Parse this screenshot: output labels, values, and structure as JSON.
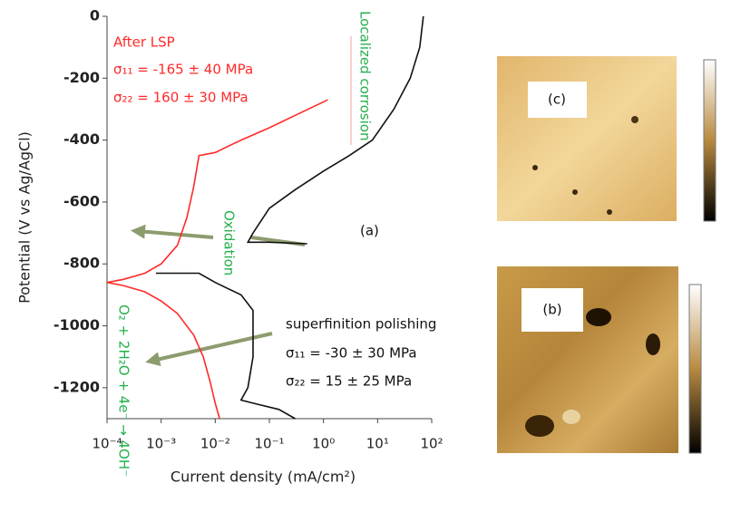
{
  "chart_data": {
    "type": "line",
    "xlabel": "Current density (mA/cm²)",
    "ylabel": "Potential (V vs Ag/AgCl)",
    "xscale": "log",
    "xlim": [
      0.0001,
      100
    ],
    "xticks": [
      {
        "value": 0.0001,
        "label": "10⁻⁴"
      },
      {
        "value": 0.001,
        "label": "10⁻³"
      },
      {
        "value": 0.01,
        "label": "10⁻²"
      },
      {
        "value": 0.1,
        "label": "10⁻¹"
      },
      {
        "value": 1,
        "label": "10⁰"
      },
      {
        "value": 10,
        "label": "10¹"
      },
      {
        "value": 100,
        "label": "10²"
      }
    ],
    "ylim": [
      -1300,
      0
    ],
    "yticks": [
      0,
      -200,
      -400,
      -600,
      -800,
      -1000,
      -1200
    ],
    "series": [
      {
        "color": "#ff2a2a",
        "x": [
          1.2,
          0.3,
          0.1,
          0.03,
          0.01,
          0.005,
          0.004,
          0.003,
          0.002,
          0.001,
          0.0005,
          0.0002,
          0.0001,
          0.0002,
          0.0005,
          0.001,
          0.002,
          0.004,
          0.006,
          0.008,
          0.01,
          0.012
        ],
        "values": [
          -270,
          -320,
          -360,
          -400,
          -440,
          -450,
          -550,
          -650,
          -740,
          -800,
          -830,
          -850,
          -860,
          -870,
          -890,
          -920,
          -960,
          -1030,
          -1100,
          -1180,
          -1250,
          -1300
        ]
      },
      {
        "color": "#111111",
        "x": [
          70,
          60,
          40,
          20,
          8,
          3,
          1,
          0.3,
          0.1,
          0.05,
          0.04,
          0.1,
          0.5,
          null,
          0.0008,
          0.002,
          0.005,
          0.01,
          0.03,
          0.05,
          0.05,
          0.04,
          0.03,
          0.05,
          0.15,
          0.3
        ],
        "values": [
          0,
          -100,
          -200,
          -300,
          -400,
          -450,
          -500,
          -560,
          -620,
          -700,
          -730,
          -730,
          -735,
          null,
          -830,
          -830,
          -830,
          -860,
          -900,
          -950,
          -1100,
          -1200,
          -1240,
          -1250,
          -1270,
          -1300
        ]
      }
    ],
    "annotations": [
      {
        "text": "After LSP",
        "color": "#ff2a2a"
      },
      {
        "text": "σ₁₁ = -165 ± 40 MPa",
        "color": "#ff2a2a"
      },
      {
        "text": "σ₂₂ = 160 ± 30 MPa",
        "color": "#ff2a2a"
      },
      {
        "text": "Localized corrosion",
        "color": "#22b04a"
      },
      {
        "text": "Oxidation",
        "color": "#22b04a"
      },
      {
        "text": "(a)",
        "color": "#111111"
      },
      {
        "text": "superfinition polishing",
        "color": "#111111"
      },
      {
        "text": "σ₁₁ = -30 ± 30 MPa",
        "color": "#111111"
      },
      {
        "text": "σ₂₂ = 15 ± 25 MPa",
        "color": "#111111"
      },
      {
        "text": "O₂ + 2H₂O + 4e⁻ → 4OH⁻",
        "color": "#22b04a"
      }
    ],
    "insets": [
      {
        "label": "(c)"
      },
      {
        "label": "(b)"
      }
    ]
  }
}
